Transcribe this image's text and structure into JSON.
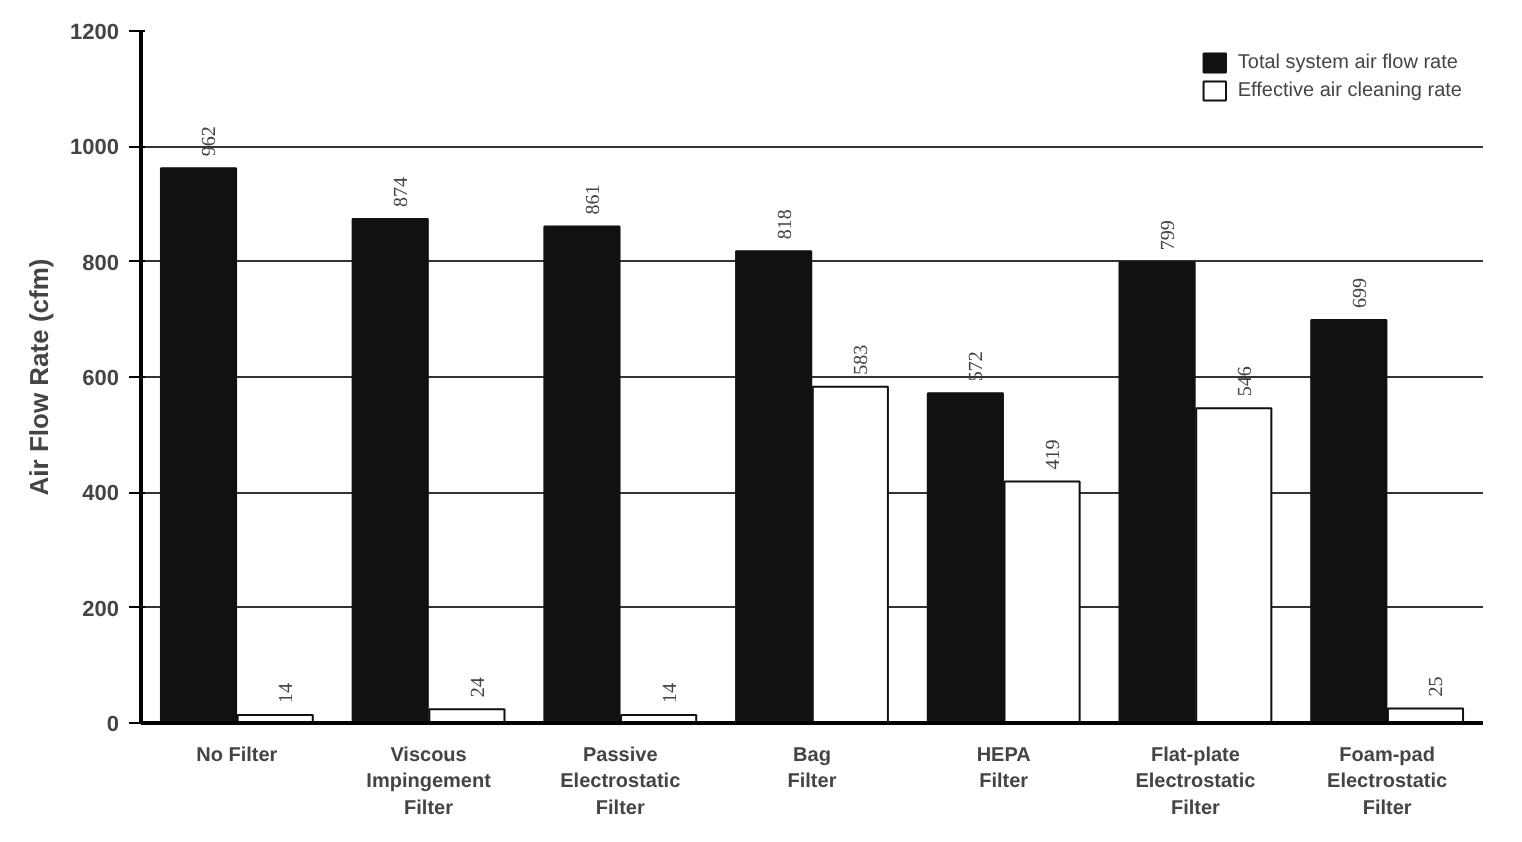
{
  "chart_data": {
    "type": "bar",
    "ylabel": "Air Flow Rate (cfm)",
    "categories": [
      "No Filter",
      "Viscous\nImpingement\nFilter",
      "Passive\nElectrostatic\nFilter",
      "Bag\nFilter",
      "HEPA\nFilter",
      "Flat-plate\nElectrostatic\nFilter",
      "Foam-pad\nElectrostatic\nFilter"
    ],
    "series": [
      {
        "name": "Total system air flow rate",
        "color": "#111111",
        "values": [
          962,
          874,
          861,
          818,
          572,
          799,
          699
        ]
      },
      {
        "name": "Effective air cleaning rate",
        "color": "#ffffff",
        "values": [
          14,
          24,
          14,
          583,
          419,
          546,
          25
        ]
      }
    ],
    "ylim": [
      0,
      1200
    ],
    "yticks": [
      0,
      200,
      400,
      600,
      800,
      1000,
      1200
    ],
    "grid": "y",
    "legend": "top right",
    "data_labels": true
  }
}
